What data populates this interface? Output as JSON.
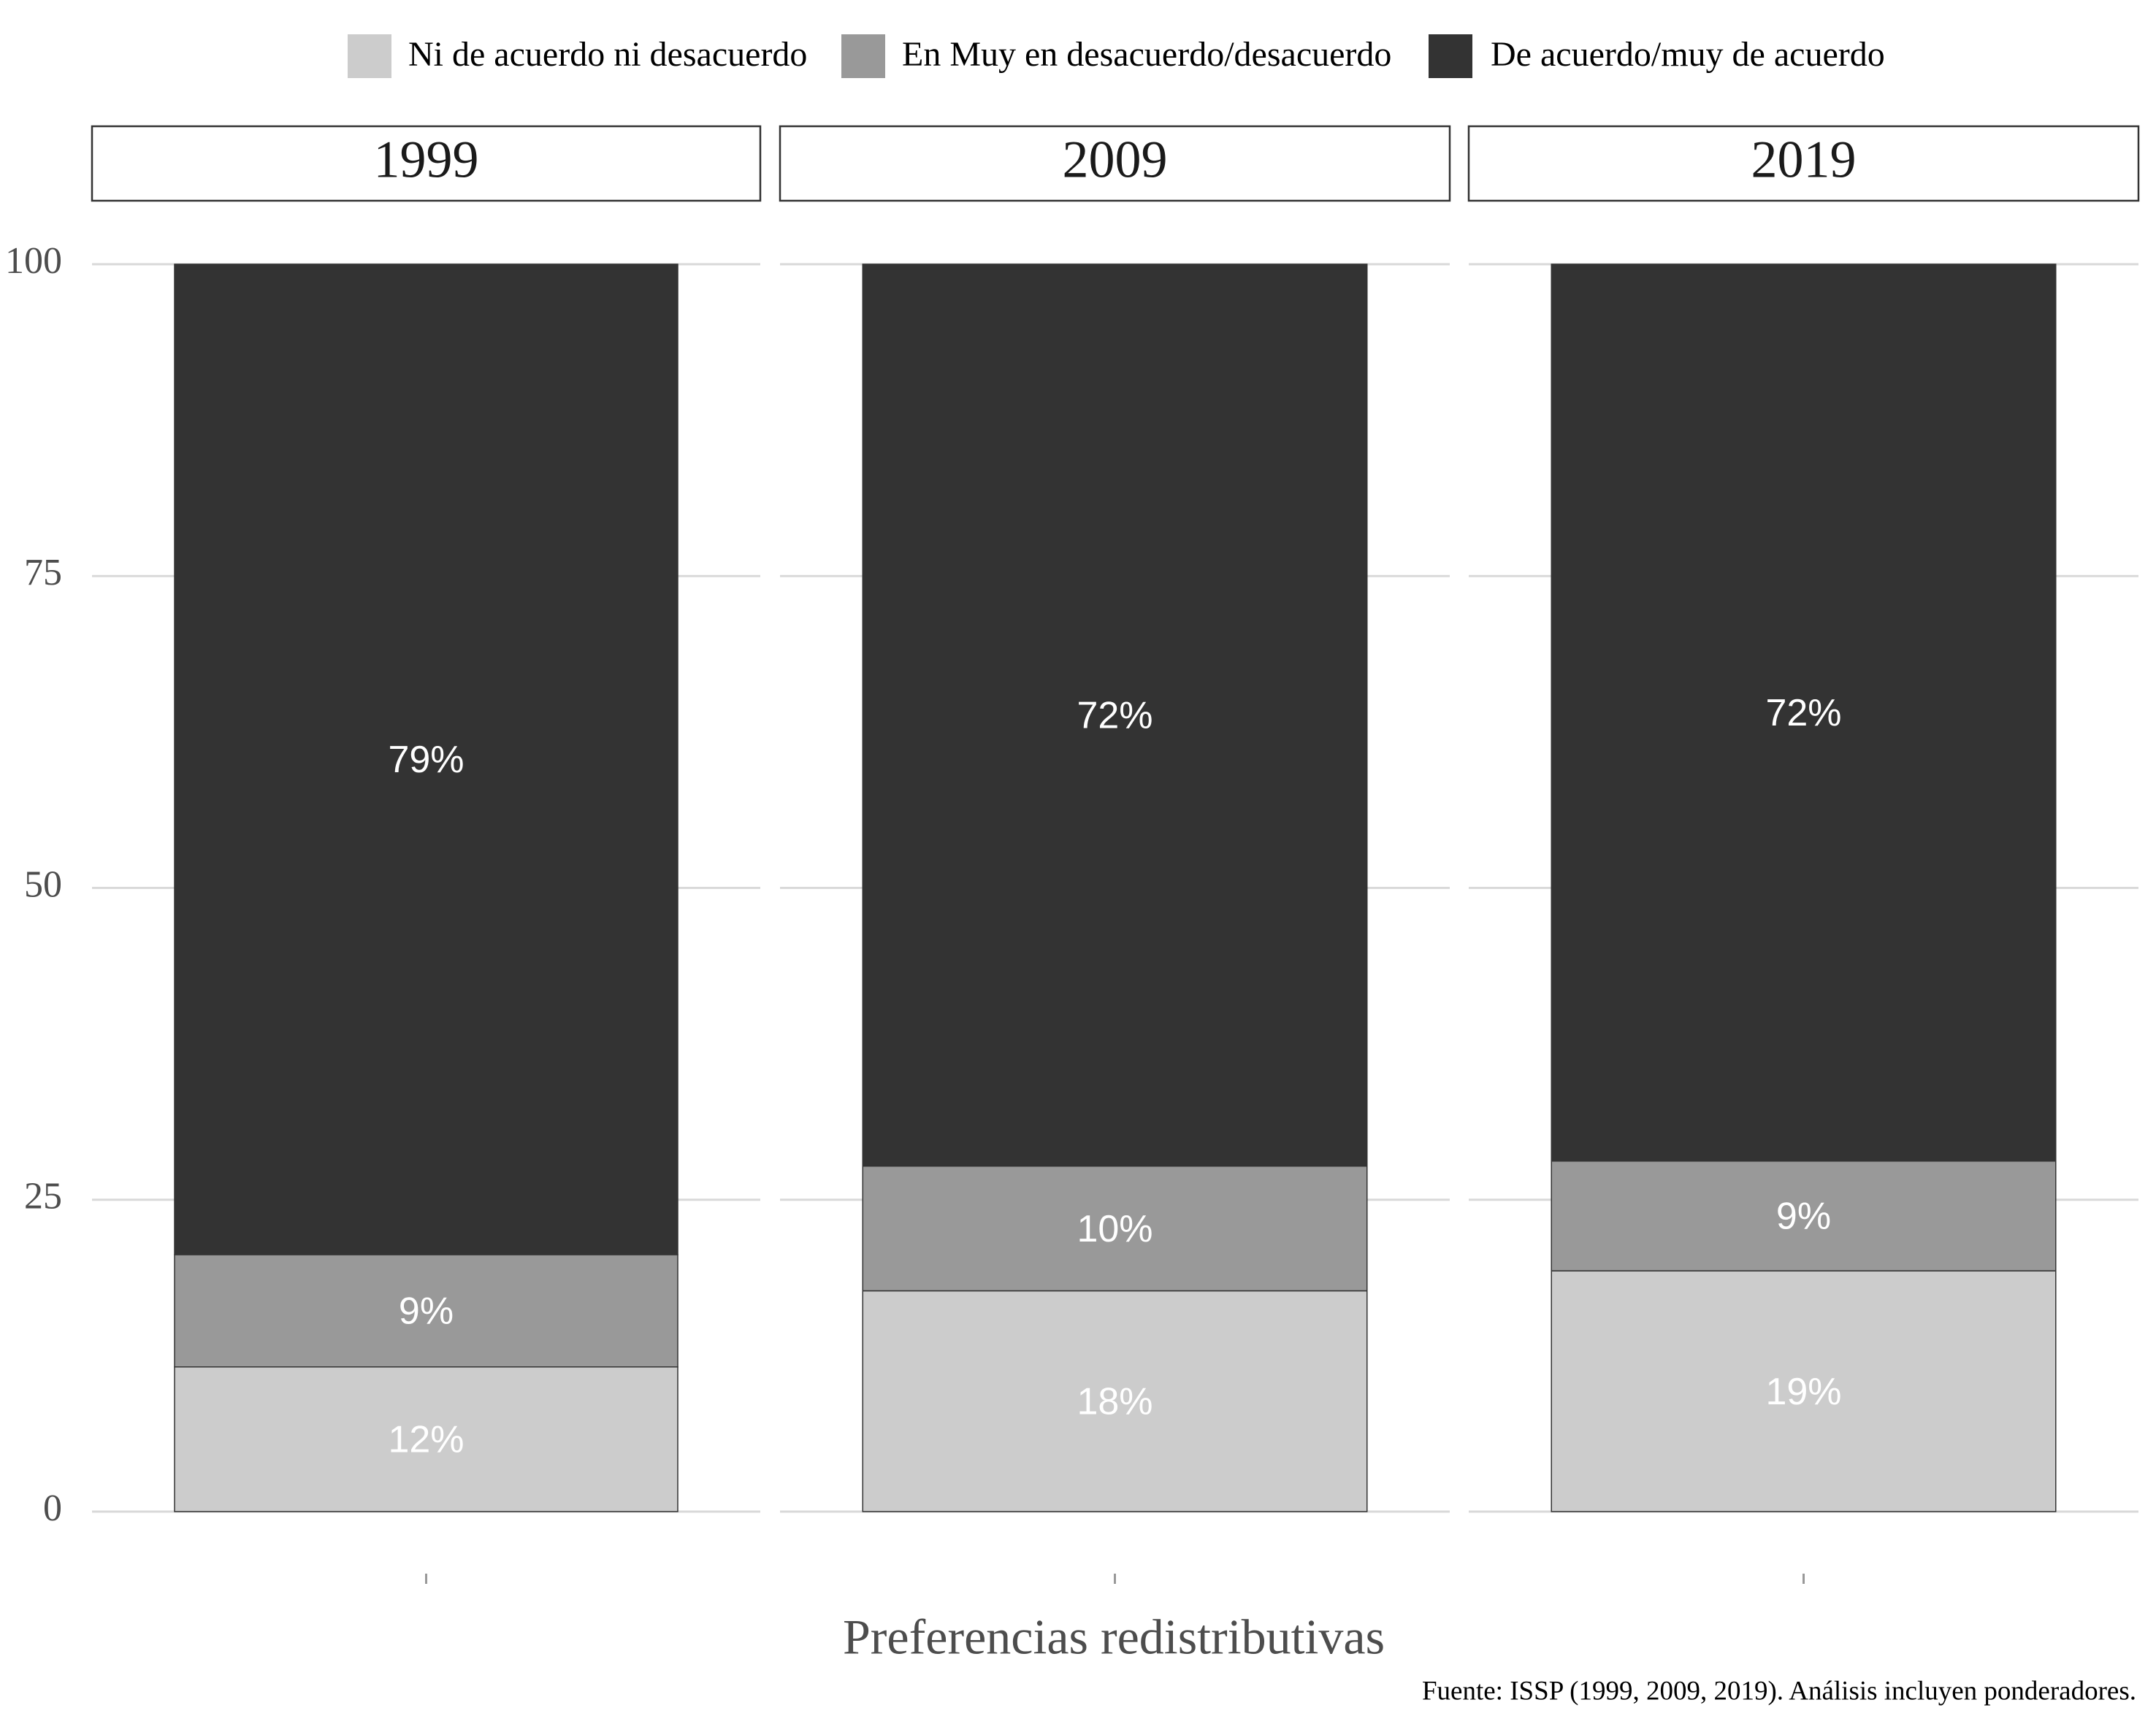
{
  "chart_data": {
    "type": "stacked_bar",
    "categories": [
      "1999",
      "2009",
      "2019"
    ],
    "series": [
      {
        "name": "Ni de acuerdo ni desacuerdo",
        "color": "#cccccc",
        "values": [
          11.6,
          17.7,
          19.3
        ],
        "value_labels": [
          "12%",
          "18%",
          "19%"
        ]
      },
      {
        "name": "En Muy en desacuerdo/desacuerdo",
        "color": "#999999",
        "values": [
          9.0,
          10.0,
          8.8
        ],
        "value_labels": [
          "9%",
          "10%",
          "9%"
        ]
      },
      {
        "name": "De acuerdo/muy de acuerdo",
        "color": "#333333",
        "values": [
          79.4,
          72.3,
          71.9
        ],
        "value_labels": [
          "79%",
          "72%",
          "72%"
        ]
      }
    ],
    "ylim": [
      0,
      100
    ],
    "yticks": [
      0,
      25,
      50,
      75,
      100
    ],
    "grid": true,
    "legend": "top",
    "xlabel": "Preferencias redistributivas",
    "caption": "Fuente: ISSP (1999, 2009, 2019). Análisis incluyen ponderadores."
  }
}
